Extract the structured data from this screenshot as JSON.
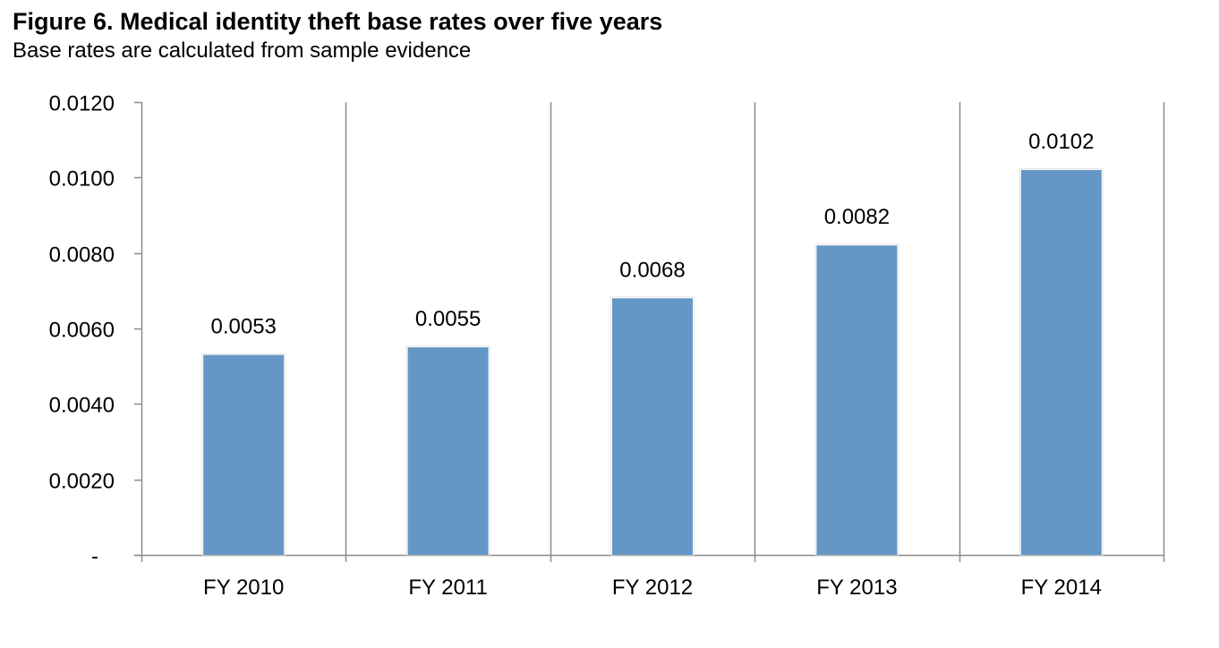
{
  "chart_data": {
    "type": "bar",
    "title": "Figure 6. Medical identity theft base rates over five years",
    "subtitle": "Base rates are calculated from sample evidence",
    "categories": [
      "FY 2010",
      "FY 2011",
      "FY 2012",
      "FY 2013",
      "FY 2014"
    ],
    "values": [
      0.0053,
      0.0055,
      0.0068,
      0.0082,
      0.0102
    ],
    "data_labels": [
      "0.0053",
      "0.0055",
      "0.0068",
      "0.0082",
      "0.0102"
    ],
    "ylim": [
      0,
      0.012
    ],
    "yticks": [
      0,
      0.002,
      0.004,
      0.006,
      0.008,
      0.01,
      0.012
    ],
    "ytick_labels": [
      "-",
      "0.0020",
      "0.0040",
      "0.0060",
      "0.0080",
      "0.0100",
      "0.0120"
    ],
    "xlabel": "",
    "ylabel": "",
    "grid": "vertical",
    "legend": "none",
    "bar_color": "#6497c6",
    "grid_color": "#8c8c8c",
    "axis_color": "#8c8c8c"
  }
}
